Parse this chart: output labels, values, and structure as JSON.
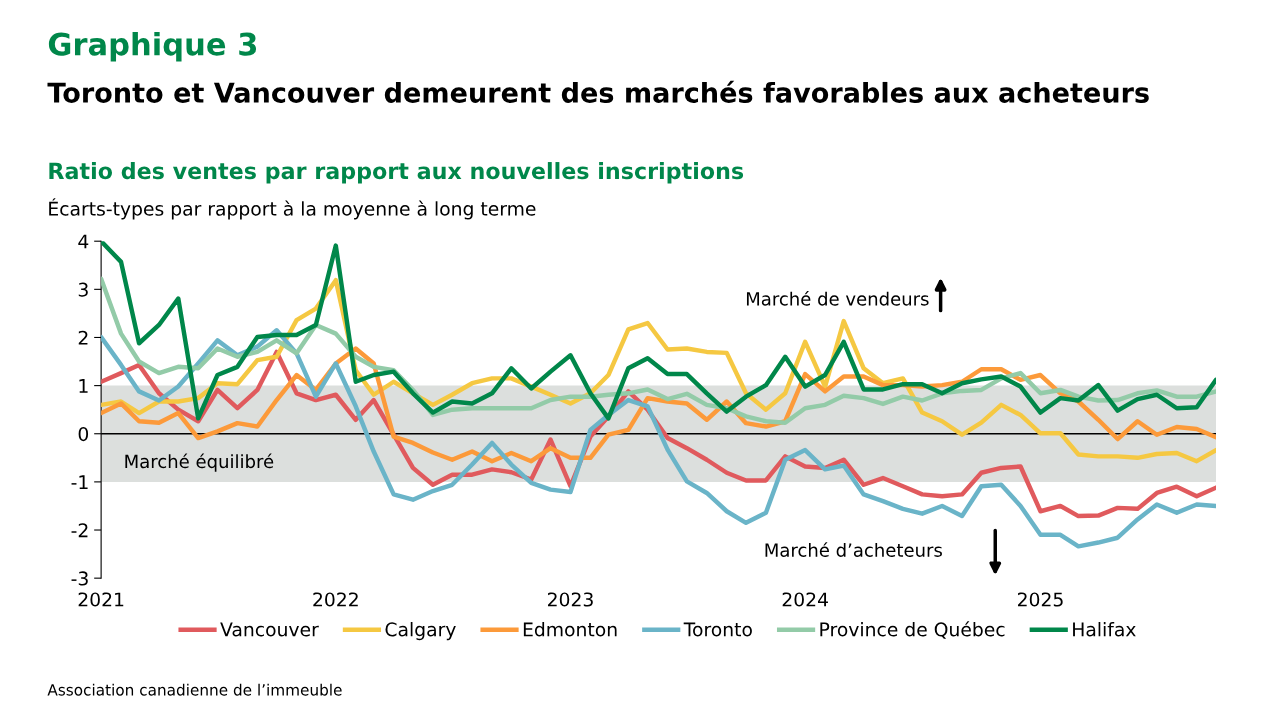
{
  "chart_data": {
    "type": "line",
    "title": "Graphique 3",
    "subtitle": "Toronto et Vancouver demeurent des marchés favorables aux acheteurs",
    "ylabel": "Écarts-types par rapport à la moyenne à long terme",
    "annotations": [
      "Ratio des ventes par rapport aux nouvelles inscriptions",
      "Marché de vendeurs",
      "Marché d’acheteurs",
      "Association canadienne de l’immeuble"
    ],
    "x": [
      "2021-01",
      "2021-02",
      "2021-03",
      "2021-04",
      "2021-05",
      "2021-06",
      "2021-07",
      "2021-08",
      "2021-09",
      "2021-10",
      "2021-11",
      "2021-12",
      "2022-01",
      "2022-02",
      "2022-03",
      "2022-04",
      "2022-05",
      "2022-06",
      "2022-07",
      "2022-08",
      "2022-09",
      "2022-10",
      "2022-11",
      "2022-12",
      "2023-01",
      "2023-02",
      "2023-03",
      "2023-04",
      "2023-05",
      "2023-06",
      "2023-07",
      "2023-08",
      "2023-09",
      "2023-10",
      "2023-11",
      "2023-12",
      "2024-01",
      "2024-02",
      "2024-03",
      "2024-04",
      "2024-05",
      "2024-06",
      "2024-07",
      "2024-08",
      "2024-09",
      "2024-10",
      "2024-11",
      "2024-12",
      "2025-01",
      "2025-02",
      "2025-03",
      "2025-04",
      "2025-05",
      "2025-06",
      "2025-07",
      "2025-08",
      "2025-09",
      "2025-10"
    ],
    "series": [
      {
        "name": "Vancouver",
        "color": "#e05a5d",
        "values": [
          1.08,
          1.26,
          1.43,
          0.84,
          0.5,
          0.26,
          0.91,
          0.53,
          0.91,
          1.7,
          0.84,
          0.7,
          0.81,
          0.29,
          0.7,
          -0.02,
          -0.71,
          -1.06,
          -0.85,
          -0.85,
          -0.74,
          -0.8,
          -0.95,
          -0.12,
          -1.09,
          -0.06,
          0.36,
          0.88,
          0.5,
          -0.09,
          -0.3,
          -0.54,
          -0.81,
          -0.97,
          -0.97,
          -0.47,
          -0.68,
          -0.71,
          -0.54,
          -1.06,
          -0.92,
          -1.09,
          -1.26,
          -1.3,
          -1.26,
          -0.81,
          -0.71,
          -0.68,
          -1.61,
          -1.5,
          -1.71,
          -1.7,
          -1.54,
          -1.56,
          -1.23,
          -1.1,
          -1.3,
          -1.12
        ]
      },
      {
        "name": "Calgary",
        "color": "#f5c842",
        "values": [
          0.6,
          0.67,
          0.43,
          0.67,
          0.67,
          0.74,
          1.05,
          1.03,
          1.53,
          1.6,
          2.36,
          2.6,
          3.19,
          1.32,
          0.81,
          1.08,
          0.84,
          0.6,
          0.81,
          1.05,
          1.15,
          1.15,
          0.98,
          0.81,
          0.63,
          0.84,
          1.22,
          2.17,
          2.3,
          1.75,
          1.77,
          1.7,
          1.68,
          0.84,
          0.5,
          0.84,
          1.91,
          0.98,
          2.34,
          1.36,
          1.05,
          1.15,
          0.44,
          0.26,
          -0.02,
          0.23,
          0.6,
          0.39,
          0.01,
          0.01,
          -0.43,
          -0.47,
          -0.47,
          -0.5,
          -0.42,
          -0.4,
          -0.57,
          -0.34
        ]
      },
      {
        "name": "Edmonton",
        "color": "#fc9a3a",
        "values": [
          0.43,
          0.63,
          0.26,
          0.23,
          0.43,
          -0.09,
          0.05,
          0.22,
          0.15,
          0.7,
          1.22,
          0.91,
          1.46,
          1.77,
          1.46,
          -0.06,
          -0.19,
          -0.39,
          -0.54,
          -0.37,
          -0.57,
          -0.4,
          -0.57,
          -0.3,
          -0.5,
          -0.5,
          -0.02,
          0.08,
          0.74,
          0.67,
          0.63,
          0.29,
          0.67,
          0.22,
          0.15,
          0.26,
          1.24,
          0.88,
          1.19,
          1.19,
          1.01,
          1.01,
          0.98,
          1.01,
          1.08,
          1.34,
          1.34,
          1.12,
          1.22,
          0.84,
          0.67,
          0.29,
          -0.11,
          0.26,
          -0.02,
          0.14,
          0.1,
          -0.07
        ]
      },
      {
        "name": "Toronto",
        "color": "#6ab4c8",
        "values": [
          2.01,
          1.43,
          0.88,
          0.69,
          0.98,
          1.46,
          1.94,
          1.63,
          1.81,
          2.15,
          1.67,
          0.77,
          1.46,
          0.57,
          -0.37,
          -1.26,
          -1.37,
          -1.19,
          -1.06,
          -0.64,
          -0.19,
          -0.64,
          -1.02,
          -1.16,
          -1.21,
          0.08,
          0.39,
          0.7,
          0.57,
          -0.33,
          -0.99,
          -1.23,
          -1.61,
          -1.85,
          -1.64,
          -0.54,
          -0.34,
          -0.74,
          -0.66,
          -1.26,
          -1.4,
          -1.56,
          -1.66,
          -1.5,
          -1.71,
          -1.09,
          -1.06,
          -1.5,
          -2.1,
          -2.1,
          -2.34,
          -2.26,
          -2.16,
          -1.78,
          -1.47,
          -1.64,
          -1.47,
          -1.5
        ]
      },
      {
        "name": "Province de Québec",
        "color": "#93cba8",
        "values": [
          3.22,
          2.08,
          1.5,
          1.26,
          1.39,
          1.36,
          1.77,
          1.6,
          1.7,
          1.94,
          1.67,
          2.26,
          2.08,
          1.6,
          1.39,
          1.32,
          0.91,
          0.39,
          0.5,
          0.53,
          0.53,
          0.53,
          0.53,
          0.7,
          0.77,
          0.77,
          0.81,
          0.84,
          0.92,
          0.72,
          0.83,
          0.6,
          0.53,
          0.36,
          0.26,
          0.23,
          0.53,
          0.6,
          0.79,
          0.74,
          0.62,
          0.77,
          0.69,
          0.84,
          0.89,
          0.91,
          1.15,
          1.26,
          0.84,
          0.91,
          0.77,
          0.69,
          0.7,
          0.84,
          0.9,
          0.77,
          0.77,
          0.88
        ]
      },
      {
        "name": "Halifax",
        "color": "#00874a",
        "values": [
          4.0,
          3.57,
          1.88,
          2.26,
          2.81,
          0.32,
          1.22,
          1.39,
          2.01,
          2.05,
          2.05,
          2.26,
          3.91,
          1.08,
          1.22,
          1.29,
          0.84,
          0.44,
          0.67,
          0.63,
          0.84,
          1.36,
          0.94,
          1.29,
          1.63,
          0.84,
          0.32,
          1.36,
          1.57,
          1.24,
          1.24,
          0.84,
          0.46,
          0.77,
          1.01,
          1.6,
          0.98,
          1.22,
          1.91,
          0.92,
          0.92,
          1.03,
          1.03,
          0.84,
          1.05,
          1.13,
          1.19,
          0.98,
          0.44,
          0.74,
          0.69,
          1.01,
          0.48,
          0.72,
          0.81,
          0.53,
          0.55,
          1.12
        ]
      }
    ],
    "xlim": [
      "2021-01",
      "2025-10"
    ],
    "xticks": [
      "2021",
      "2022",
      "2023",
      "2024",
      "2025"
    ],
    "ylim": [
      -3,
      4
    ],
    "yticks": [
      -3,
      -2,
      -1,
      0,
      1,
      2,
      3,
      4
    ],
    "ref_lines": [
      {
        "axis": "y",
        "value": 0,
        "color": "#000000"
      }
    ],
    "bands": [
      {
        "axis": "y",
        "from": -1,
        "to": 1,
        "label": "Marché équilibré",
        "color": "#dcdfdd"
      }
    ],
    "legend": "bottom",
    "grid": false,
    "line_style": "solid"
  }
}
